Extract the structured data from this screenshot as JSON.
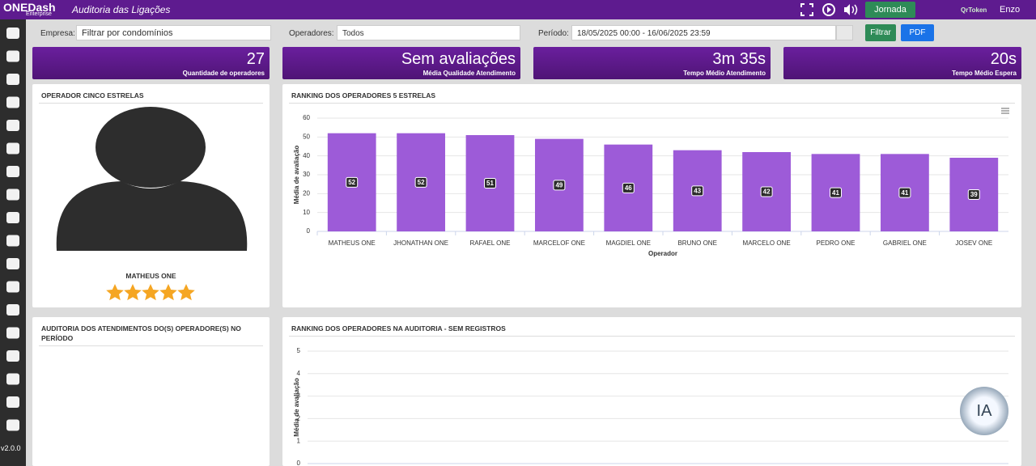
{
  "header": {
    "logo": "ONEDash",
    "logo_sub": "Enterprise",
    "title": "Auditoria das Ligações",
    "jornada": "Jornada",
    "qrtoken": "QrToken",
    "user": "Enzo"
  },
  "sidebar": {
    "version": "v2.0.0"
  },
  "filters": {
    "empresa_label": "Empresa:",
    "empresa_value": "Filtrar por condomínios",
    "operadores_label": "Operadores:",
    "operadores_value": "Todos",
    "periodo_label": "Período:",
    "periodo_value": "18/05/2025 00:00 - 16/06/2025 23:59",
    "filter_button": "Filtrar",
    "pdf_button": "PDF"
  },
  "kpis": [
    {
      "value": 27,
      "label": "Quantidade de operadores"
    },
    {
      "value": "Sem avaliações",
      "label": "Média Qualidade Atendimento"
    },
    {
      "value": "3m 35s",
      "label": "Tempo Médio Atendimento"
    },
    {
      "value": "20s",
      "label": "Tempo Médio Espera"
    }
  ],
  "panels": {
    "star_operator": {
      "title": "OPERADOR CINCO ESTRELAS",
      "name": "MATHEUS ONE"
    },
    "audit": {
      "title": "AUDITORIA DOS ATENDIMENTOS DO(S) OPERADORE(S) NO PERÍODO"
    }
  },
  "chart_data": [
    {
      "type": "bar",
      "title": "RANKING DOS OPERADORES 5 ESTRELAS",
      "x_label": "Operador",
      "y_label": "Média de avaliação",
      "categories": [
        "MATHEUS ONE",
        "JHONATHAN ONE",
        "RAFAEL ONE",
        "MARCELOF ONE",
        "MAGDIEL ONE",
        "BRUNO ONE",
        "MARCELO ONE",
        "PEDRO ONE",
        "GABRIEL ONE",
        "JOSEV ONE"
      ],
      "values": [
        52,
        52,
        51,
        49,
        46,
        43,
        42,
        41,
        41,
        39
      ],
      "color": "#9d5bd8",
      "ylim": [
        0,
        60
      ],
      "yticks": [
        0,
        10,
        20,
        30,
        40,
        50,
        60
      ],
      "grid": true
    },
    {
      "type": "bar",
      "title": "RANKING DOS OPERADORES NA AUDITORIA - SEM REGISTROS",
      "y_label": "Média de avaliação",
      "categories": [],
      "values": [],
      "color": "#9d5bd8",
      "ylim": [
        0,
        5
      ],
      "yticks": [
        0,
        1,
        2,
        3,
        4,
        5
      ],
      "grid": true
    }
  ],
  "assistant_badge": "IA"
}
